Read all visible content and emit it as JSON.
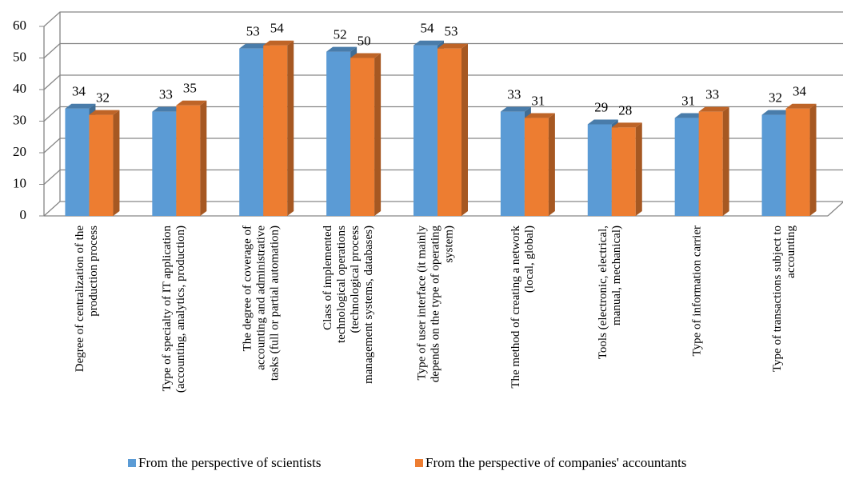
{
  "chart_data": {
    "type": "bar3d",
    "categories": [
      "Degree of centralization of the\nproduction process",
      "Type of specialty of IT application\n(accounting, analytics, production)",
      "The degree of coverage of\naccounting and administrative\ntasks (full or partial automation)",
      "Class of implemented\ntechnological operations\n(technological process\nmanagement systems, databases)",
      "Type of user interface (it mainly\ndepends on the type of operating\nsystem)",
      "The method of creating a network\n(local, global)",
      "Tools (electronic, electrical,\nmanual, mechanical)",
      "Type of information carrier",
      "Type of transactions subject to\naccounting"
    ],
    "series": [
      {
        "name": "From the perspective of scientists",
        "color": "#5b9bd5",
        "values": [
          34,
          33,
          53,
          52,
          54,
          33,
          29,
          31,
          32
        ]
      },
      {
        "name": "From the perspective of companies' accountants",
        "color": "#ed7d31",
        "values": [
          32,
          35,
          54,
          50,
          53,
          31,
          28,
          33,
          34
        ]
      }
    ],
    "ylim": [
      0,
      60
    ],
    "yticks": [
      0,
      10,
      20,
      30,
      40,
      50,
      60
    ],
    "grid": true,
    "legend": "bottom"
  }
}
